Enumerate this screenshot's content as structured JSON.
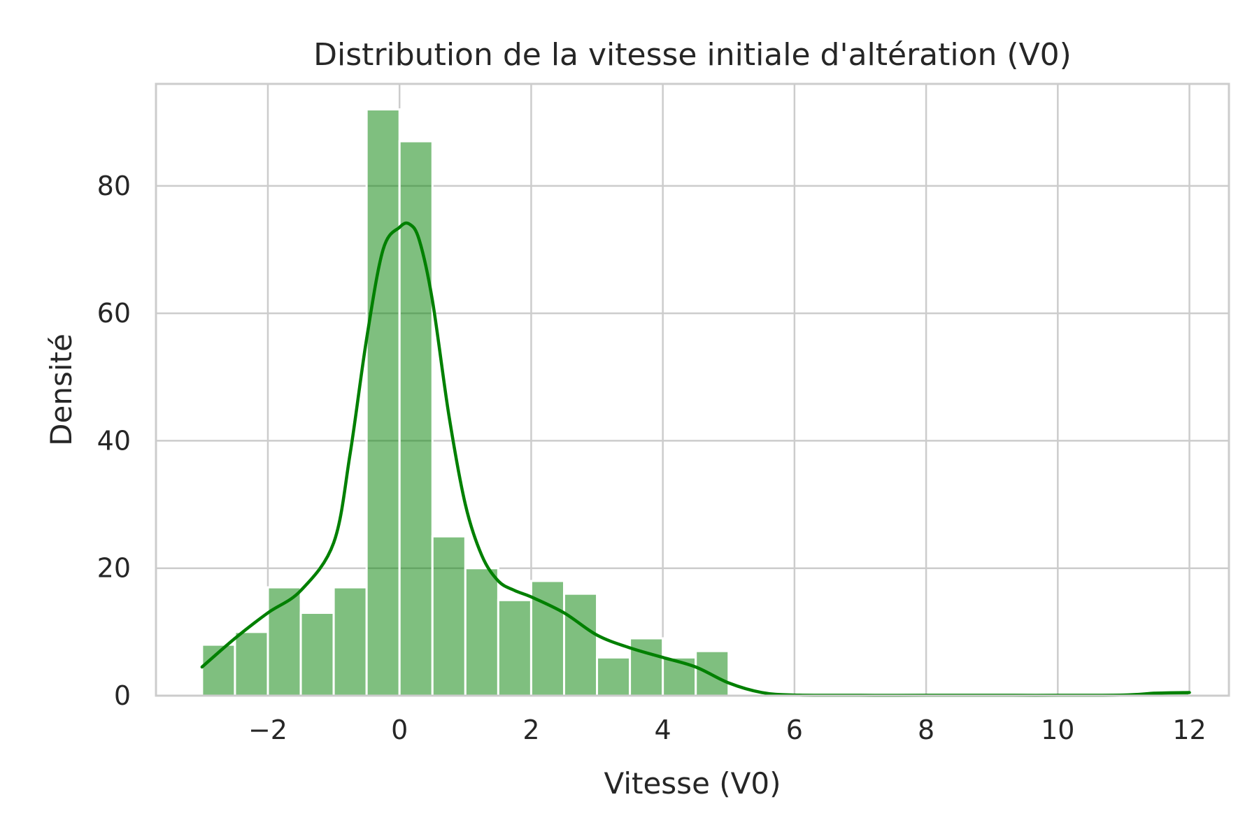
{
  "chart_data": {
    "type": "bar",
    "subtype": "histogram-with-kde",
    "title": "Distribution de la vitesse initiale d'altération (V0)",
    "xlabel": "Vitesse (V0)",
    "ylabel": "Densité",
    "xlim": [
      -3.7,
      12.6
    ],
    "ylim": [
      0,
      96
    ],
    "xticks": [
      -2,
      0,
      2,
      4,
      6,
      8,
      10,
      12
    ],
    "xtick_labels": [
      "−2",
      "0",
      "2",
      "4",
      "6",
      "8",
      "10",
      "12"
    ],
    "yticks": [
      0,
      20,
      40,
      60,
      80
    ],
    "ytick_labels": [
      "0",
      "20",
      "40",
      "60",
      "80"
    ],
    "grid": true,
    "legend": "none",
    "bar_color": "#008000",
    "bins": [
      {
        "x0": -3.0,
        "x1": -2.5,
        "value": 8
      },
      {
        "x0": -2.5,
        "x1": -2.0,
        "value": 10
      },
      {
        "x0": -2.0,
        "x1": -1.5,
        "value": 17
      },
      {
        "x0": -1.5,
        "x1": -1.0,
        "value": 13
      },
      {
        "x0": -1.0,
        "x1": -0.5,
        "value": 17
      },
      {
        "x0": -0.5,
        "x1": 0.0,
        "value": 92
      },
      {
        "x0": 0.0,
        "x1": 0.5,
        "value": 87
      },
      {
        "x0": 0.5,
        "x1": 1.0,
        "value": 25
      },
      {
        "x0": 1.0,
        "x1": 1.5,
        "value": 20
      },
      {
        "x0": 1.5,
        "x1": 2.0,
        "value": 15
      },
      {
        "x0": 2.0,
        "x1": 2.5,
        "value": 18
      },
      {
        "x0": 2.5,
        "x1": 3.0,
        "value": 16
      },
      {
        "x0": 3.0,
        "x1": 3.5,
        "value": 6
      },
      {
        "x0": 3.5,
        "x1": 4.0,
        "value": 9
      },
      {
        "x0": 4.0,
        "x1": 4.5,
        "value": 6
      },
      {
        "x0": 4.5,
        "x1": 5.0,
        "value": 7
      },
      {
        "x0": 11.5,
        "x1": 12.0,
        "value": 0.6
      }
    ],
    "kde": {
      "color": "#008000",
      "x": [
        -3.0,
        -2.5,
        -2.0,
        -1.5,
        -1.0,
        -0.75,
        -0.5,
        -0.25,
        0.0,
        0.15,
        0.3,
        0.5,
        0.75,
        1.0,
        1.25,
        1.5,
        1.75,
        2.0,
        2.5,
        3.0,
        3.5,
        4.0,
        4.5,
        5.0,
        5.5,
        6.0,
        7.0,
        8.0,
        9.0,
        10.0,
        11.0,
        11.5,
        12.0
      ],
      "y": [
        4.5,
        9.0,
        13.0,
        16.5,
        24.0,
        38.0,
        56.0,
        70.0,
        73.5,
        74.0,
        71.5,
        62.0,
        44.0,
        30.0,
        22.0,
        18.0,
        16.5,
        15.5,
        13.0,
        9.5,
        7.5,
        6.0,
        4.5,
        2.0,
        0.5,
        0.1,
        0.05,
        0.05,
        0.05,
        0.05,
        0.1,
        0.4,
        0.5
      ]
    }
  }
}
